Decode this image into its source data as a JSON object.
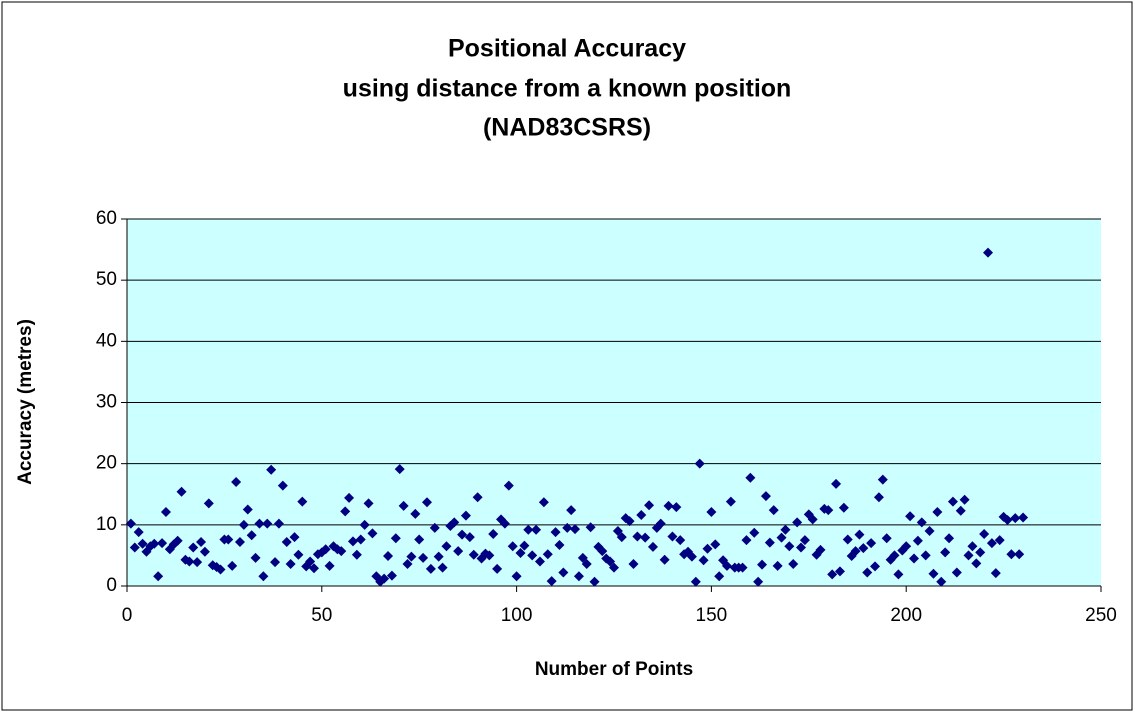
{
  "chart_data": {
    "type": "scatter",
    "title": [
      "Positional Accuracy",
      "using distance from a known position",
      "(NAD83CSRS)"
    ],
    "x_label": "Number of Points",
    "y_label": "Accuracy (metres)",
    "xlim": [
      0,
      250
    ],
    "xticks": [
      0,
      50,
      100,
      150,
      200,
      250
    ],
    "ylim": [
      0,
      60
    ],
    "yticks": [
      0,
      10,
      20,
      30,
      40,
      50,
      60
    ],
    "grid": true,
    "color": "#000080",
    "plot_background": "#ccffff",
    "x": [
      1,
      2,
      3,
      4,
      5,
      6,
      7,
      8,
      9,
      10,
      11,
      12,
      13,
      14,
      15,
      16,
      17,
      18,
      19,
      20,
      21,
      22,
      23,
      24,
      25,
      26,
      27,
      28,
      29,
      30,
      31,
      32,
      33,
      34,
      35,
      36,
      37,
      38,
      39,
      40,
      41,
      42,
      43,
      44,
      45,
      46,
      47,
      48,
      49,
      50,
      51,
      52,
      53,
      54,
      55,
      56,
      57,
      58,
      59,
      60,
      61,
      62,
      63,
      64,
      65,
      66,
      67,
      68,
      69,
      70,
      71,
      72,
      73,
      74,
      75,
      76,
      77,
      78,
      79,
      80,
      81,
      82,
      83,
      84,
      85,
      86,
      87,
      88,
      89,
      90,
      91,
      92,
      93,
      94,
      95,
      96,
      97,
      98,
      99,
      100,
      101,
      102,
      103,
      104,
      105,
      106,
      107,
      108,
      109,
      110,
      111,
      112,
      113,
      114,
      115,
      116,
      117,
      118,
      119,
      120,
      121,
      122,
      123,
      124,
      125,
      126,
      127,
      128,
      129,
      130,
      131,
      132,
      133,
      134,
      135,
      136,
      137,
      138,
      139,
      140,
      141,
      142,
      143,
      144,
      145,
      146,
      147,
      148,
      149,
      150,
      151,
      152,
      153,
      154,
      155,
      156,
      157,
      158,
      159,
      160,
      161,
      162,
      163,
      164,
      165,
      166,
      167,
      168,
      169,
      170,
      171,
      172,
      173,
      174,
      175,
      176,
      177,
      178,
      179,
      180,
      181,
      182,
      183,
      184,
      185,
      186,
      187,
      188,
      189,
      190,
      191,
      192,
      193,
      194,
      195,
      196,
      197,
      198,
      199,
      200,
      201,
      202,
      203,
      204,
      205,
      206,
      207,
      208,
      209,
      210,
      211,
      212,
      213,
      214,
      215,
      216,
      217,
      218,
      219,
      220,
      221,
      222,
      223,
      224,
      225,
      226,
      227,
      228,
      229,
      230
    ],
    "values": [
      10.2,
      6.3,
      8.8,
      6.9,
      5.6,
      6.5,
      6.9,
      1.6,
      7.0,
      12.1,
      6.0,
      6.8,
      7.4,
      15.4,
      4.3,
      4.0,
      6.3,
      3.9,
      7.2,
      5.6,
      13.5,
      3.4,
      3.1,
      2.7,
      7.6,
      7.6,
      3.3,
      17.0,
      7.2,
      10.0,
      12.5,
      8.3,
      4.6,
      10.2,
      1.6,
      10.2,
      19.0,
      3.9,
      10.2,
      16.4,
      7.2,
      3.6,
      8.0,
      5.1,
      13.8,
      3.2,
      4.0,
      2.9,
      5.2,
      5.5,
      6.0,
      3.3,
      6.5,
      6.0,
      5.7,
      12.2,
      14.4,
      7.3,
      5.1,
      7.6,
      10.0,
      13.5,
      8.6,
      1.6,
      0.7,
      1.2,
      4.9,
      1.7,
      7.8,
      19.1,
      13.1,
      3.6,
      4.8,
      11.8,
      7.6,
      4.6,
      13.7,
      2.8,
      9.5,
      4.8,
      3.0,
      6.5,
      9.8,
      10.4,
      5.7,
      8.4,
      11.5,
      8.0,
      5.1,
      14.5,
      4.5,
      5.3,
      5.0,
      8.5,
      2.8,
      10.9,
      10.2,
      16.4,
      6.5,
      1.6,
      5.4,
      6.6,
      9.2,
      5.0,
      9.2,
      4.0,
      13.7,
      5.2,
      0.8,
      8.8,
      6.7,
      2.2,
      9.5,
      12.4,
      9.3,
      1.6,
      4.6,
      3.6,
      9.6,
      0.7,
      6.4,
      5.7,
      4.5,
      4.0,
      3.0,
      9.0,
      8.0,
      11.1,
      10.6,
      3.6,
      8.1,
      11.6,
      7.9,
      13.2,
      6.4,
      9.5,
      10.2,
      4.3,
      13.1,
      8.1,
      12.9,
      7.5,
      5.2,
      5.6,
      4.8,
      0.7,
      20.0,
      4.2,
      6.1,
      12.1,
      6.8,
      1.6,
      4.2,
      3.3,
      13.8,
      3.0,
      3.0,
      3.0,
      7.5,
      17.7,
      8.7,
      0.7,
      3.5,
      14.7,
      7.1,
      12.4,
      3.3,
      7.9,
      9.2,
      6.5,
      3.6,
      10.4,
      6.3,
      7.5,
      11.7,
      10.9,
      5.1,
      5.9,
      12.6,
      12.4,
      1.9,
      16.7,
      2.4,
      12.8,
      7.6,
      4.9,
      5.7,
      8.4,
      6.2,
      2.2,
      7.0,
      3.2,
      14.5,
      17.4,
      7.8,
      4.3,
      5.0,
      1.9,
      5.8,
      6.5,
      11.4,
      4.5,
      7.4,
      10.4,
      5.0,
      9.0,
      2.0,
      12.1,
      0.7,
      5.5,
      7.8,
      13.8,
      2.2,
      12.3,
      14.1,
      5.0,
      6.5,
      3.7,
      5.5,
      8.5,
      54.5,
      7.0,
      2.1,
      7.5,
      11.3,
      10.8,
      5.2,
      11.1,
      5.2,
      11.2
    ]
  }
}
